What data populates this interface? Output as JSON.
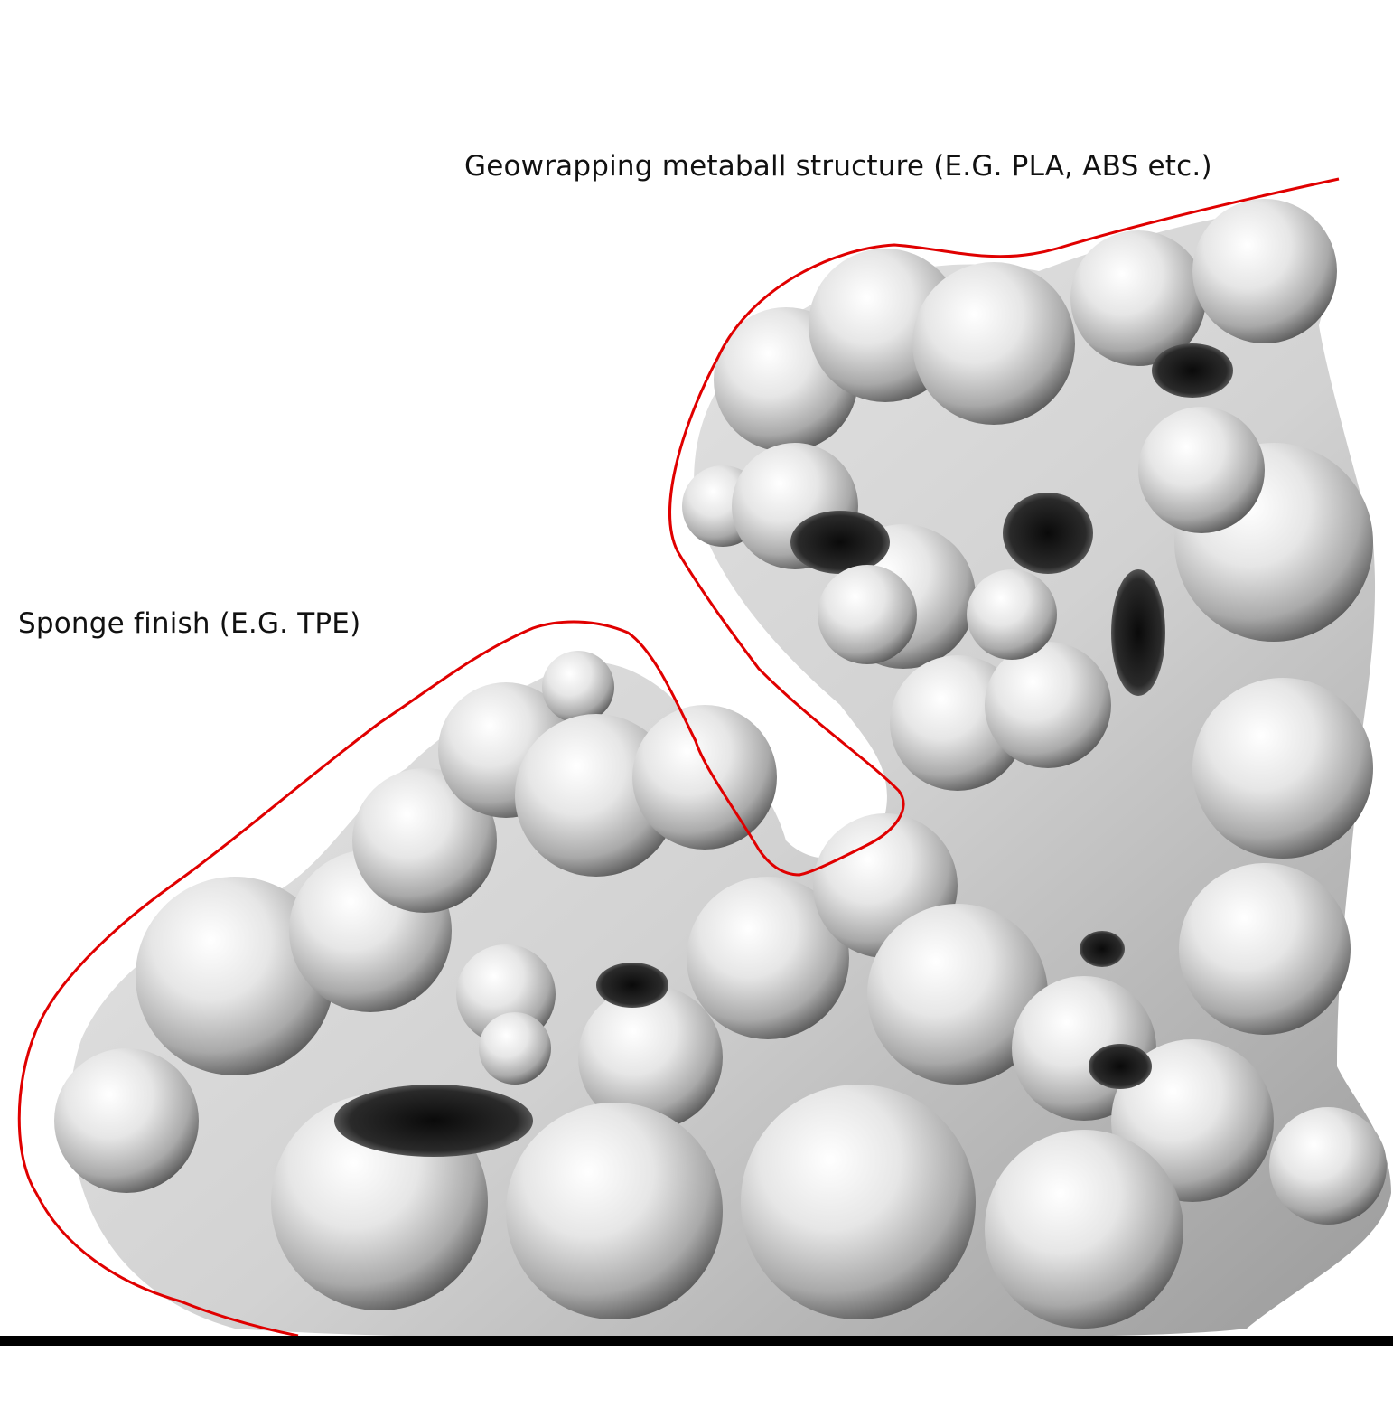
{
  "labels": {
    "geowrapping": "Geowrapping metaball structure (E.G. PLA, ABS etc.)",
    "sponge": "Sponge finish (E.G. TPE)"
  },
  "colors": {
    "outline": "#e00000",
    "ground": "#000000",
    "surface_light": "#f2f2f2",
    "surface_mid": "#bdbdbd",
    "surface_dark": "#1a1a1a"
  },
  "object": "metaball-sculpture"
}
